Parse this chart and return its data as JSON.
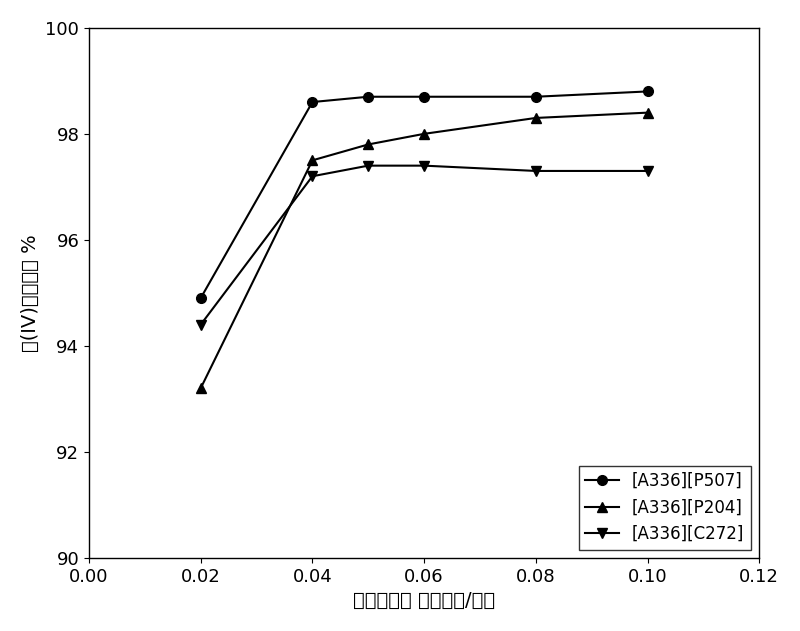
{
  "series": [
    {
      "label": "[A336][P507]",
      "x": [
        0.02,
        0.04,
        0.05,
        0.06,
        0.08,
        0.1
      ],
      "y": [
        94.9,
        98.6,
        98.7,
        98.7,
        98.7,
        98.8
      ],
      "marker": "o",
      "color": "#000000"
    },
    {
      "label": "[A336][P204]",
      "x": [
        0.02,
        0.04,
        0.05,
        0.06,
        0.08,
        0.1
      ],
      "y": [
        93.2,
        97.5,
        97.8,
        98.0,
        98.3,
        98.4
      ],
      "marker": "^",
      "color": "#000000"
    },
    {
      "label": "[A336][C272]",
      "x": [
        0.02,
        0.04,
        0.05,
        0.06,
        0.08,
        0.1
      ],
      "y": [
        94.4,
        97.2,
        97.4,
        97.4,
        97.3,
        97.3
      ],
      "marker": "v",
      "color": "#000000"
    }
  ],
  "xlabel": "萸取剂的浓 度（摩尔/升）",
  "ylabel": "钇(IV)的萸取率 %",
  "xlim": [
    0.0,
    0.12
  ],
  "ylim": [
    90,
    100
  ],
  "xticks": [
    0.0,
    0.02,
    0.04,
    0.06,
    0.08,
    0.1,
    0.12
  ],
  "yticks": [
    90,
    92,
    94,
    96,
    98,
    100
  ],
  "legend_loc": "lower right",
  "background_color": "#ffffff",
  "linewidth": 1.5,
  "markersize": 7,
  "label_fontsize": 14,
  "tick_fontsize": 13,
  "legend_fontsize": 12
}
